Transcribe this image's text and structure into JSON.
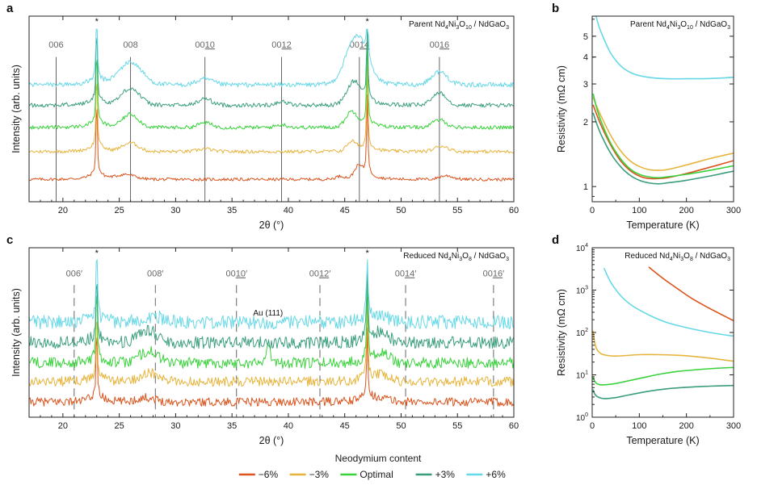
{
  "figure": {
    "legend_title": "Neodymium content",
    "legend": [
      {
        "label": "−6%",
        "color": "#d9541e"
      },
      {
        "label": "−3%",
        "color": "#e6b43c"
      },
      {
        "label": "Optimal",
        "color": "#3ad23c"
      },
      {
        "label": "+3%",
        "color": "#3a9e7e"
      },
      {
        "label": "+6%",
        "color": "#66d8e6"
      }
    ]
  },
  "chart_data": [
    {
      "panel": "a",
      "type": "line",
      "title": "Parent Nd4Ni3O10 / NdGaO3",
      "title_parts": {
        "pre": "Parent Nd",
        "s1": "4",
        "m1": "Ni",
        "s2": "3",
        "m2": "O",
        "s3": "10",
        "m3": " / NdGaO",
        "s4": "3"
      },
      "xlabel": "2θ (°)",
      "ylabel": "Intensity (arb. units)",
      "xlim": [
        17,
        60
      ],
      "xticks": [
        20,
        25,
        30,
        35,
        40,
        45,
        50,
        55,
        60
      ],
      "ylim": [
        0,
        10
      ],
      "substrate_peaks": [
        23.0,
        47.0
      ],
      "substrate_marker": "*",
      "reference_lines": [
        {
          "x": 19.4,
          "pre": "00",
          "num": "6",
          "prime": "",
          "underline": false
        },
        {
          "x": 26.0,
          "pre": "00",
          "num": "8",
          "prime": "",
          "underline": false
        },
        {
          "x": 32.6,
          "pre": "00",
          "num": "10",
          "prime": "",
          "underline": true
        },
        {
          "x": 39.4,
          "pre": "00",
          "num": "12",
          "prime": "",
          "underline": true
        },
        {
          "x": 46.3,
          "pre": "00",
          "num": "14",
          "prime": "",
          "underline": true
        },
        {
          "x": 53.4,
          "pre": "00",
          "num": "16",
          "prime": "",
          "underline": true
        }
      ],
      "series": [
        {
          "name": "−6%",
          "offset": 1.2,
          "film_peaks": [
            {
              "x": 46.2,
              "h": 0.6,
              "w": 0.35
            },
            {
              "x": 25.6,
              "h": 0.25,
              "w": 0.8
            },
            {
              "x": 54.0,
              "h": 0.2,
              "w": 0.6
            },
            {
              "x": 44.6,
              "h": 0.15,
              "w": 0.4
            }
          ]
        },
        {
          "name": "−3%",
          "offset": 2.7,
          "film_peaks": [
            {
              "x": 26.0,
              "h": 0.45,
              "w": 0.7
            },
            {
              "x": 45.6,
              "h": 0.5,
              "w": 0.4
            },
            {
              "x": 53.6,
              "h": 0.3,
              "w": 0.6
            },
            {
              "x": 32.6,
              "h": 0.15,
              "w": 0.6
            }
          ]
        },
        {
          "name": "Optimal",
          "offset": 4.0,
          "film_peaks": [
            {
              "x": 26.0,
              "h": 0.7,
              "w": 0.7
            },
            {
              "x": 32.6,
              "h": 0.25,
              "w": 0.6
            },
            {
              "x": 45.6,
              "h": 0.8,
              "w": 0.5
            },
            {
              "x": 53.4,
              "h": 0.4,
              "w": 0.6
            },
            {
              "x": 39.4,
              "h": 0.15,
              "w": 0.5
            }
          ]
        },
        {
          "name": "+3%",
          "offset": 5.2,
          "film_peaks": [
            {
              "x": 26.0,
              "h": 0.9,
              "w": 0.8
            },
            {
              "x": 32.6,
              "h": 0.35,
              "w": 0.6
            },
            {
              "x": 45.8,
              "h": 1.2,
              "w": 0.6
            },
            {
              "x": 53.4,
              "h": 0.7,
              "w": 0.6
            },
            {
              "x": 39.4,
              "h": 0.2,
              "w": 0.5
            }
          ]
        },
        {
          "name": "+6%",
          "offset": 6.3,
          "film_peaks": [
            {
              "x": 26.0,
              "h": 1.2,
              "w": 1.0
            },
            {
              "x": 32.6,
              "h": 0.3,
              "w": 0.7
            },
            {
              "x": 46.0,
              "h": 2.5,
              "w": 0.9
            },
            {
              "x": 53.4,
              "h": 0.7,
              "w": 0.7
            }
          ]
        }
      ]
    },
    {
      "panel": "b",
      "type": "line",
      "title": "Parent Nd4Ni3O10 / NdGaO3",
      "title_parts": {
        "pre": "Parent Nd",
        "s1": "4",
        "m1": "Ni",
        "s2": "3",
        "m2": "O",
        "s3": "10",
        "m3": " / NdGaO",
        "s4": "3"
      },
      "xlabel": "Temperature (K)",
      "ylabel": "Resistivity (mΩ cm)",
      "xlim": [
        0,
        300
      ],
      "ylim": [
        0.85,
        6.2
      ],
      "yscale": "log",
      "xticks": [
        0,
        100,
        200,
        300
      ],
      "yticks": [
        1,
        2,
        3,
        4,
        5
      ],
      "series": [
        {
          "name": "−6%",
          "x": [
            2,
            10,
            20,
            40,
            60,
            80,
            100,
            120,
            140,
            160,
            200,
            250,
            300
          ],
          "y": [
            2.4,
            2.15,
            1.9,
            1.55,
            1.32,
            1.19,
            1.12,
            1.09,
            1.09,
            1.1,
            1.15,
            1.23,
            1.32
          ]
        },
        {
          "name": "−3%",
          "x": [
            2,
            10,
            20,
            40,
            60,
            80,
            100,
            120,
            140,
            160,
            200,
            250,
            300
          ],
          "y": [
            2.6,
            2.35,
            2.1,
            1.72,
            1.47,
            1.32,
            1.24,
            1.2,
            1.19,
            1.2,
            1.26,
            1.35,
            1.43
          ]
        },
        {
          "name": "Optimal",
          "x": [
            2,
            10,
            20,
            40,
            60,
            80,
            100,
            120,
            140,
            160,
            200,
            250,
            300
          ],
          "y": [
            2.7,
            2.3,
            1.98,
            1.58,
            1.35,
            1.21,
            1.14,
            1.11,
            1.1,
            1.11,
            1.14,
            1.19,
            1.25
          ]
        },
        {
          "name": "+3%",
          "x": [
            2,
            10,
            20,
            40,
            60,
            80,
            100,
            120,
            140,
            160,
            200,
            250,
            300
          ],
          "y": [
            2.2,
            1.95,
            1.72,
            1.42,
            1.24,
            1.13,
            1.07,
            1.04,
            1.03,
            1.04,
            1.07,
            1.12,
            1.18
          ]
        },
        {
          "name": "+6%",
          "x": [
            8,
            15,
            25,
            40,
            60,
            80,
            100,
            130,
            160,
            200,
            250,
            300
          ],
          "y": [
            6.2,
            5.5,
            4.85,
            4.15,
            3.65,
            3.4,
            3.28,
            3.2,
            3.17,
            3.17,
            3.18,
            3.22
          ]
        }
      ]
    },
    {
      "panel": "c",
      "type": "line",
      "title": "Reduced Nd4Ni3O8 / NdGaO3",
      "title_parts": {
        "pre": "Reduced Nd",
        "s1": "4",
        "m1": "Ni",
        "s2": "3",
        "m2": "O",
        "s3": "8",
        "m3": " / NdGaO",
        "s4": "3"
      },
      "xlabel": "2θ (°)",
      "ylabel": "Intensity (arb. units)",
      "xlim": [
        17,
        60
      ],
      "xticks": [
        20,
        25,
        30,
        35,
        40,
        45,
        50,
        55,
        60
      ],
      "ylim": [
        0,
        10
      ],
      "substrate_peaks": [
        23.0,
        47.0
      ],
      "substrate_marker": "*",
      "annotation": {
        "text": "Au (111)",
        "x": 38.2
      },
      "reference_lines": [
        {
          "x": 21.0,
          "pre": "00",
          "num": "6",
          "prime": "′",
          "underline": false
        },
        {
          "x": 28.2,
          "pre": "00",
          "num": "8",
          "prime": "′",
          "underline": false
        },
        {
          "x": 35.4,
          "pre": "00",
          "num": "10",
          "prime": "′",
          "underline": true
        },
        {
          "x": 42.8,
          "pre": "00",
          "num": "12",
          "prime": "′",
          "underline": true
        },
        {
          "x": 50.4,
          "pre": "00",
          "num": "14",
          "prime": "′",
          "underline": true
        },
        {
          "x": 58.2,
          "pre": "00",
          "num": "16",
          "prime": "′",
          "underline": true
        }
      ],
      "series": [
        {
          "name": "−6%",
          "offset": 0.9,
          "film_peaks": [
            {
              "x": 27.4,
              "h": 0.25,
              "w": 0.8
            },
            {
              "x": 48.3,
              "h": 0.2,
              "w": 0.6
            }
          ]
        },
        {
          "name": "−3%",
          "offset": 2.1,
          "film_peaks": [
            {
              "x": 27.6,
              "h": 0.5,
              "w": 0.8
            },
            {
              "x": 48.3,
              "h": 0.35,
              "w": 0.6
            }
          ]
        },
        {
          "name": "Optimal",
          "offset": 3.2,
          "film_peaks": [
            {
              "x": 27.6,
              "h": 0.7,
              "w": 0.8
            },
            {
              "x": 38.2,
              "h": 1.2,
              "w": 0.2
            },
            {
              "x": 48.3,
              "h": 0.6,
              "w": 0.6
            }
          ]
        },
        {
          "name": "+3%",
          "offset": 4.4,
          "film_peaks": [
            {
              "x": 27.6,
              "h": 0.7,
              "w": 0.8
            },
            {
              "x": 48.3,
              "h": 0.6,
              "w": 0.6
            }
          ]
        },
        {
          "name": "+6%",
          "offset": 5.6,
          "film_peaks": [
            {
              "x": 28.0,
              "h": 0.35,
              "w": 0.9
            },
            {
              "x": 48.4,
              "h": 0.3,
              "w": 0.6
            }
          ]
        }
      ]
    },
    {
      "panel": "d",
      "type": "line",
      "title": "Reduced Nd4Ni3O8 / NdGaO3",
      "title_parts": {
        "pre": "Reduced Nd",
        "s1": "4",
        "m1": "Ni",
        "s2": "3",
        "m2": "O",
        "s3": "8",
        "m3": " / NdGaO",
        "s4": "3"
      },
      "xlabel": "Temperature (K)",
      "ylabel": "Resistivity (mΩ cm)",
      "xlim": [
        0,
        300
      ],
      "ylim": [
        1,
        10000
      ],
      "yscale": "log",
      "xticks": [
        0,
        100,
        200,
        300
      ],
      "yticks": [
        {
          "v": 1,
          "mant": "10",
          "exp": "0"
        },
        {
          "v": 10,
          "mant": "10",
          "exp": "1"
        },
        {
          "v": 100,
          "mant": "10",
          "exp": "2"
        },
        {
          "v": 1000,
          "mant": "10",
          "exp": "3"
        },
        {
          "v": 10000,
          "mant": "10",
          "exp": "4"
        }
      ],
      "series": [
        {
          "name": "−6%",
          "x": [
            120,
            150,
            180,
            210,
            240,
            270,
            300
          ],
          "y": [
            3500,
            1900,
            1100,
            650,
            420,
            280,
            190
          ]
        },
        {
          "name": "−3%",
          "x": [
            2,
            5,
            10,
            20,
            40,
            60,
            100,
            140,
            180,
            220,
            260,
            300
          ],
          "y": [
            110,
            60,
            40,
            31,
            28,
            28,
            30,
            30,
            29,
            27,
            24,
            21
          ]
        },
        {
          "name": "Optimal",
          "x": [
            2,
            5,
            10,
            20,
            40,
            60,
            100,
            140,
            180,
            220,
            260,
            300
          ],
          "y": [
            9,
            7.2,
            6.2,
            5.8,
            6.0,
            6.6,
            8.2,
            10.2,
            12.0,
            13.2,
            14.2,
            15.0
          ]
        },
        {
          "name": "+3%",
          "x": [
            2,
            5,
            10,
            20,
            30,
            50,
            80,
            120,
            160,
            200,
            250,
            300
          ],
          "y": [
            4.5,
            3.6,
            3.1,
            2.8,
            2.75,
            2.9,
            3.4,
            4.1,
            4.7,
            5.1,
            5.4,
            5.6
          ]
        },
        {
          "name": "+6%",
          "x": [
            25,
            40,
            60,
            80,
            100,
            130,
            160,
            200,
            250,
            300
          ],
          "y": [
            3300,
            1500,
            750,
            470,
            340,
            230,
            170,
            130,
            100,
            82
          ]
        }
      ]
    }
  ]
}
